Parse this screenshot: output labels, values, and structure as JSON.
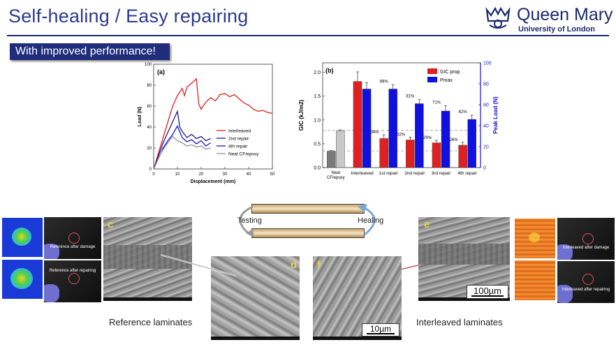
{
  "header": {
    "title": "Self-healing / Easy repairing",
    "logo_name": "Queen Mary",
    "logo_sub": "University of London"
  },
  "banner": {
    "text": "With improved performance!"
  },
  "colors": {
    "navy": "#1f2d7a",
    "red": "#e02020",
    "blue": "#1010e0",
    "gray": "#808080"
  },
  "chart_data": [
    {
      "type": "line",
      "panel_label": "(a)",
      "xlabel": "Displacement (mm)",
      "ylabel": "Load (N)",
      "xlim": [
        0,
        50
      ],
      "ylim": [
        0,
        100
      ],
      "xticks": [
        0,
        10,
        20,
        30,
        40,
        50
      ],
      "yticks": [
        0,
        20,
        40,
        60,
        80,
        100
      ],
      "legend_position": "center-right",
      "series": [
        {
          "name": "Interleaved",
          "color": "#e02020",
          "x": [
            0,
            6,
            8,
            10,
            12,
            13,
            14,
            16,
            18,
            19,
            20,
            22,
            24,
            26,
            28,
            30,
            32,
            34,
            36,
            38,
            40,
            42,
            44,
            46,
            48,
            50
          ],
          "y": [
            0,
            45,
            60,
            70,
            77,
            70,
            78,
            82,
            86,
            62,
            57,
            64,
            68,
            65,
            71,
            72,
            69,
            71,
            67,
            63,
            61,
            57,
            55,
            56,
            54,
            53
          ]
        },
        {
          "name": "2nd repair",
          "color": "#1a1a8c",
          "x": [
            0,
            4,
            6,
            8,
            10,
            11,
            12,
            14,
            16,
            18,
            20,
            22,
            24
          ],
          "y": [
            0,
            25,
            35,
            45,
            55,
            40,
            36,
            30,
            33,
            29,
            31,
            27,
            29
          ]
        },
        {
          "name": "4th repair",
          "color": "#1515d8",
          "x": [
            0,
            4,
            6,
            8,
            10,
            12,
            14,
            16,
            18,
            20,
            22,
            24
          ],
          "y": [
            0,
            20,
            27,
            33,
            41,
            30,
            26,
            28,
            24,
            27,
            22,
            25
          ]
        },
        {
          "name": "Neat CF/epoxy",
          "color": "#909090",
          "x": [
            0,
            3,
            5,
            7,
            8,
            10,
            12,
            14,
            16,
            18,
            20,
            22,
            24
          ],
          "y": [
            0,
            15,
            22,
            28,
            31,
            27,
            25,
            22,
            23,
            21,
            22,
            19,
            20
          ]
        }
      ]
    },
    {
      "type": "bar",
      "panel_label": "(b)",
      "categories": [
        "Neat CF/epoxy",
        "Interleaved",
        "1st repair",
        "2nd repair",
        "3rd repair",
        "4th repair"
      ],
      "ylabel": "GIC (kJ/m2)",
      "y2label": "Peak Load (N)",
      "ylim": [
        0,
        2.2
      ],
      "y2lim": [
        0,
        100
      ],
      "yticks": [
        0.0,
        0.5,
        1.0,
        1.5,
        2.0
      ],
      "y2ticks": [
        0,
        20,
        40,
        60,
        80,
        100
      ],
      "legend_position": "top-right",
      "series": [
        {
          "name": "GIC prop",
          "axis": "left",
          "color": "#e02020",
          "values": [
            0.34,
            1.81,
            0.61,
            0.58,
            0.52,
            0.47
          ],
          "errors": [
            0.02,
            0.2,
            0.08,
            0.06,
            0.05,
            0.06
          ]
        },
        {
          "name": "Pmax",
          "axis": "right",
          "color": "#1010e0",
          "values": [
            35,
            75,
            75,
            61,
            54,
            46
          ],
          "errors": [
            1,
            6,
            4,
            4,
            5,
            4
          ]
        }
      ],
      "annotations": {
        "gic_percent": [
          "34%",
          "32%",
          "29%",
          "26%"
        ],
        "pmax_percent": [
          "99%",
          "81%",
          "71%",
          "62%"
        ]
      },
      "reference_lines": [
        0.35,
        0.78
      ]
    }
  ],
  "middle": {
    "testing_label": "Testing",
    "healing_label": "Healing"
  },
  "left_group": {
    "photo_top": "Reference after damage",
    "photo_bottom": "Reference after repairing",
    "sem_c": "c",
    "sem_d": "d",
    "caption": "Reference laminates"
  },
  "right_group": {
    "photo_top": "Interleaved after damage",
    "photo_bottom": "Interleaved after repairing",
    "sem_e": "e",
    "sem_f": "f",
    "scale_e": "100µm",
    "scale_f": "10µm",
    "caption": "Interleaved laminates"
  }
}
